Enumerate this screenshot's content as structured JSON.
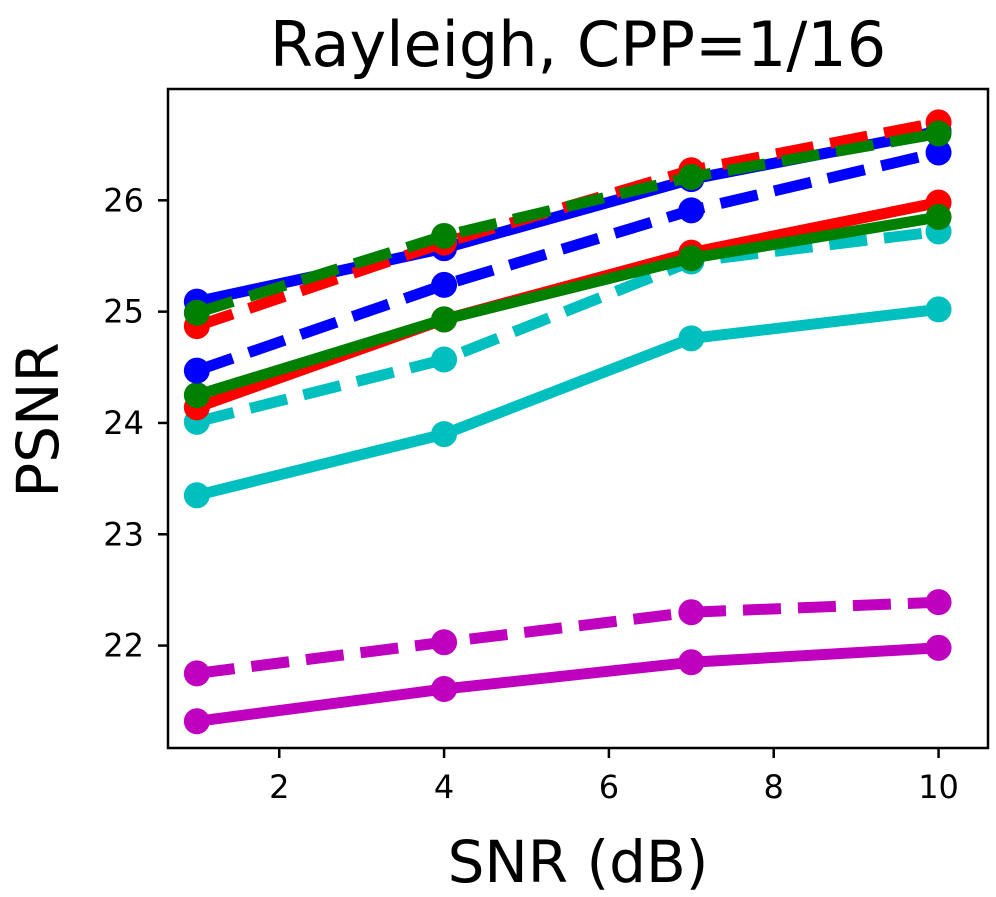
{
  "chart_data": {
    "type": "line",
    "title": "Rayleigh, CPP=1/16",
    "xlabel": "SNR (dB)",
    "ylabel": "PSNR",
    "xlim": [
      0.65,
      10.6
    ],
    "ylim": [
      21.08,
      27.0
    ],
    "xticks": [
      2,
      4,
      6,
      8,
      10
    ],
    "yticks": [
      22,
      23,
      24,
      25,
      26
    ],
    "x": [
      1,
      4,
      7,
      10
    ],
    "grid": false,
    "legend": "none",
    "series": [
      {
        "name": "magenta-solid",
        "color": "#bf00bf",
        "style": "solid",
        "values": [
          21.32,
          21.61,
          21.85,
          21.98
        ]
      },
      {
        "name": "magenta-dashed",
        "color": "#bf00bf",
        "style": "dashed",
        "values": [
          21.75,
          22.03,
          22.3,
          22.39
        ]
      },
      {
        "name": "cyan-solid",
        "color": "#00bfbf",
        "style": "solid",
        "values": [
          23.35,
          23.9,
          24.76,
          25.02
        ]
      },
      {
        "name": "cyan-dashed",
        "color": "#00bfbf",
        "style": "dashed",
        "values": [
          24.01,
          24.57,
          25.45,
          25.72
        ]
      },
      {
        "name": "red-solid",
        "color": "#ff0000",
        "style": "solid",
        "values": [
          24.14,
          24.93,
          25.53,
          25.98
        ]
      },
      {
        "name": "green-solid",
        "color": "#008000",
        "style": "solid",
        "values": [
          24.25,
          24.93,
          25.48,
          25.85
        ]
      },
      {
        "name": "blue-dashed",
        "color": "#0000ff",
        "style": "dashed",
        "values": [
          24.47,
          25.24,
          25.91,
          26.43
        ]
      },
      {
        "name": "blue-solid",
        "color": "#0000ff",
        "style": "solid",
        "values": [
          25.09,
          25.57,
          26.19,
          26.62
        ]
      },
      {
        "name": "red-dashed",
        "color": "#ff0000",
        "style": "dashed",
        "values": [
          24.87,
          25.62,
          26.27,
          26.7
        ]
      },
      {
        "name": "green-dashed",
        "color": "#008000",
        "style": "dashed",
        "values": [
          24.99,
          25.68,
          26.21,
          26.6
        ]
      }
    ]
  }
}
